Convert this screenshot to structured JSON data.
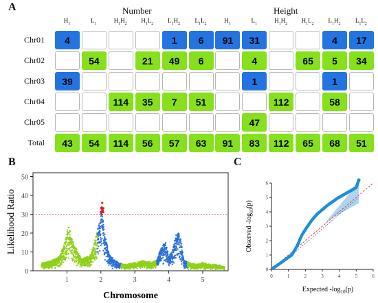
{
  "panel_a": {
    "letter": "A",
    "group_number": "Number",
    "group_height": "Height",
    "columns": [
      "H1",
      "L1",
      "H1H2",
      "H1L2",
      "L1H2",
      "L1L2",
      "H1",
      "L1",
      "H1H2",
      "H1L2",
      "L1H2",
      "L1L2"
    ],
    "rows": [
      {
        "label": "Chr01",
        "cells": [
          {
            "v": "4",
            "c": "blue"
          },
          {
            "v": "",
            "c": ""
          },
          {
            "v": "",
            "c": ""
          },
          {
            "v": "",
            "c": ""
          },
          {
            "v": "1",
            "c": "blue"
          },
          {
            "v": "6",
            "c": "blue"
          },
          {
            "v": "91",
            "c": "blue"
          },
          {
            "v": "31",
            "c": "blue"
          },
          {
            "v": "",
            "c": ""
          },
          {
            "v": "",
            "c": ""
          },
          {
            "v": "4",
            "c": "blue"
          },
          {
            "v": "17",
            "c": "blue"
          }
        ]
      },
      {
        "label": "Chr02",
        "cells": [
          {
            "v": "",
            "c": ""
          },
          {
            "v": "54",
            "c": "green"
          },
          {
            "v": "",
            "c": ""
          },
          {
            "v": "21",
            "c": "green"
          },
          {
            "v": "49",
            "c": "green"
          },
          {
            "v": "6",
            "c": "green"
          },
          {
            "v": "",
            "c": ""
          },
          {
            "v": "4",
            "c": "green"
          },
          {
            "v": "",
            "c": ""
          },
          {
            "v": "65",
            "c": "green"
          },
          {
            "v": "5",
            "c": "green"
          },
          {
            "v": "34",
            "c": "green"
          }
        ]
      },
      {
        "label": "Chr03",
        "cells": [
          {
            "v": "39",
            "c": "blue"
          },
          {
            "v": "",
            "c": ""
          },
          {
            "v": "",
            "c": ""
          },
          {
            "v": "",
            "c": ""
          },
          {
            "v": "",
            "c": ""
          },
          {
            "v": "",
            "c": ""
          },
          {
            "v": "",
            "c": ""
          },
          {
            "v": "1",
            "c": "blue"
          },
          {
            "v": "",
            "c": ""
          },
          {
            "v": "",
            "c": ""
          },
          {
            "v": "1",
            "c": "blue"
          },
          {
            "v": "",
            "c": ""
          }
        ]
      },
      {
        "label": "Chr04",
        "cells": [
          {
            "v": "",
            "c": ""
          },
          {
            "v": "",
            "c": ""
          },
          {
            "v": "114",
            "c": "green"
          },
          {
            "v": "35",
            "c": "green"
          },
          {
            "v": "7",
            "c": "green"
          },
          {
            "v": "51",
            "c": "green"
          },
          {
            "v": "",
            "c": ""
          },
          {
            "v": "",
            "c": ""
          },
          {
            "v": "112",
            "c": "green"
          },
          {
            "v": "",
            "c": ""
          },
          {
            "v": "58",
            "c": "green"
          },
          {
            "v": "",
            "c": ""
          }
        ]
      },
      {
        "label": "Chr05",
        "cells": [
          {
            "v": "",
            "c": ""
          },
          {
            "v": "",
            "c": ""
          },
          {
            "v": "",
            "c": ""
          },
          {
            "v": "",
            "c": ""
          },
          {
            "v": "",
            "c": ""
          },
          {
            "v": "",
            "c": ""
          },
          {
            "v": "",
            "c": ""
          },
          {
            "v": "47",
            "c": "green"
          },
          {
            "v": "",
            "c": ""
          },
          {
            "v": "",
            "c": ""
          },
          {
            "v": "",
            "c": ""
          },
          {
            "v": "",
            "c": ""
          }
        ]
      },
      {
        "label": "Total",
        "cells": [
          {
            "v": "43",
            "c": "green"
          },
          {
            "v": "54",
            "c": "green"
          },
          {
            "v": "114",
            "c": "green"
          },
          {
            "v": "56",
            "c": "green"
          },
          {
            "v": "57",
            "c": "green"
          },
          {
            "v": "63",
            "c": "green"
          },
          {
            "v": "91",
            "c": "green"
          },
          {
            "v": "83",
            "c": "green"
          },
          {
            "v": "112",
            "c": "green"
          },
          {
            "v": "65",
            "c": "green"
          },
          {
            "v": "68",
            "c": "green"
          },
          {
            "v": "51",
            "c": "green"
          }
        ]
      }
    ]
  },
  "chart_data": [
    {
      "type": "scatter",
      "panel": "B",
      "xlabel": "Chromosome",
      "ylabel": "Likelihood Ratio",
      "xlim": [
        0,
        5.75
      ],
      "ylim": [
        0,
        52
      ],
      "x_ticks": [
        "1",
        "2",
        "3",
        "4",
        "5"
      ],
      "y_ticks": [
        0,
        10,
        20,
        30,
        40,
        50
      ],
      "threshold": 30,
      "chromosome_colors": [
        "#8fd11a",
        "#2a6fd6",
        "#8fd11a",
        "#2a6fd6",
        "#8fd11a"
      ],
      "highlight_color": "#e01a1a",
      "series": [
        {
          "x": [
            0.3,
            0.55,
            0.8,
            0.95,
            1.05,
            1.2,
            1.45,
            1.7,
            1.85,
            2.0,
            2.03,
            2.06,
            2.1,
            2.25,
            2.5,
            2.75,
            3.0,
            3.25,
            3.5,
            3.65,
            3.75,
            3.9,
            4.0,
            4.1,
            4.2,
            4.28,
            4.35,
            4.45,
            4.6,
            4.8,
            5.0,
            5.2,
            5.4,
            5.6
          ],
          "y": [
            4,
            5,
            8,
            16,
            24,
            14,
            6,
            8,
            18,
            30,
            36,
            30,
            21,
            8,
            4,
            3,
            4,
            5,
            4,
            6,
            11,
            15,
            8,
            10,
            18,
            21,
            17,
            5,
            4,
            3,
            4,
            3,
            3,
            2
          ]
        },
        {
          "name": "above threshold",
          "x": [
            2.0,
            2.02,
            2.04,
            2.06
          ],
          "y": [
            31,
            33,
            36,
            32
          ]
        }
      ]
    },
    {
      "type": "scatter",
      "panel": "C",
      "xlabel": "Expected  -log10(p)",
      "ylabel": "Observed  -log10(p)",
      "xlim": [
        0,
        6
      ],
      "ylim": [
        0,
        6
      ],
      "x_ticks": [
        0,
        1,
        2,
        3,
        4,
        5,
        6
      ],
      "y_ticks": [
        0,
        1,
        2,
        3,
        4,
        5,
        6
      ],
      "point_color": "#1f8fd6",
      "expected_line_color": "#e02020",
      "series": [
        {
          "x": [
            0.1,
            0.3,
            0.6,
            0.9,
            1.2,
            1.5,
            1.8,
            2.1,
            2.4,
            2.7,
            3.0,
            3.3,
            3.6,
            3.9,
            4.2,
            4.5,
            4.8,
            5.0,
            5.15
          ],
          "y": [
            0.1,
            0.25,
            0.5,
            0.75,
            1.0,
            1.6,
            2.4,
            2.95,
            3.45,
            3.85,
            4.15,
            4.45,
            4.7,
            4.95,
            5.15,
            5.35,
            5.55,
            5.7,
            6.2
          ]
        }
      ]
    }
  ],
  "panel_b": {
    "letter": "B",
    "xlabel": "Chromosome",
    "ylabel": "Likelihood Ratio"
  },
  "panel_c": {
    "letter": "C",
    "xlabel_main": "Expected  -log",
    "xlabel_sub": "10",
    "xlabel_end": "(p)",
    "ylabel_main": "Observed  -log",
    "ylabel_sub": "10",
    "ylabel_end": "(p)"
  }
}
